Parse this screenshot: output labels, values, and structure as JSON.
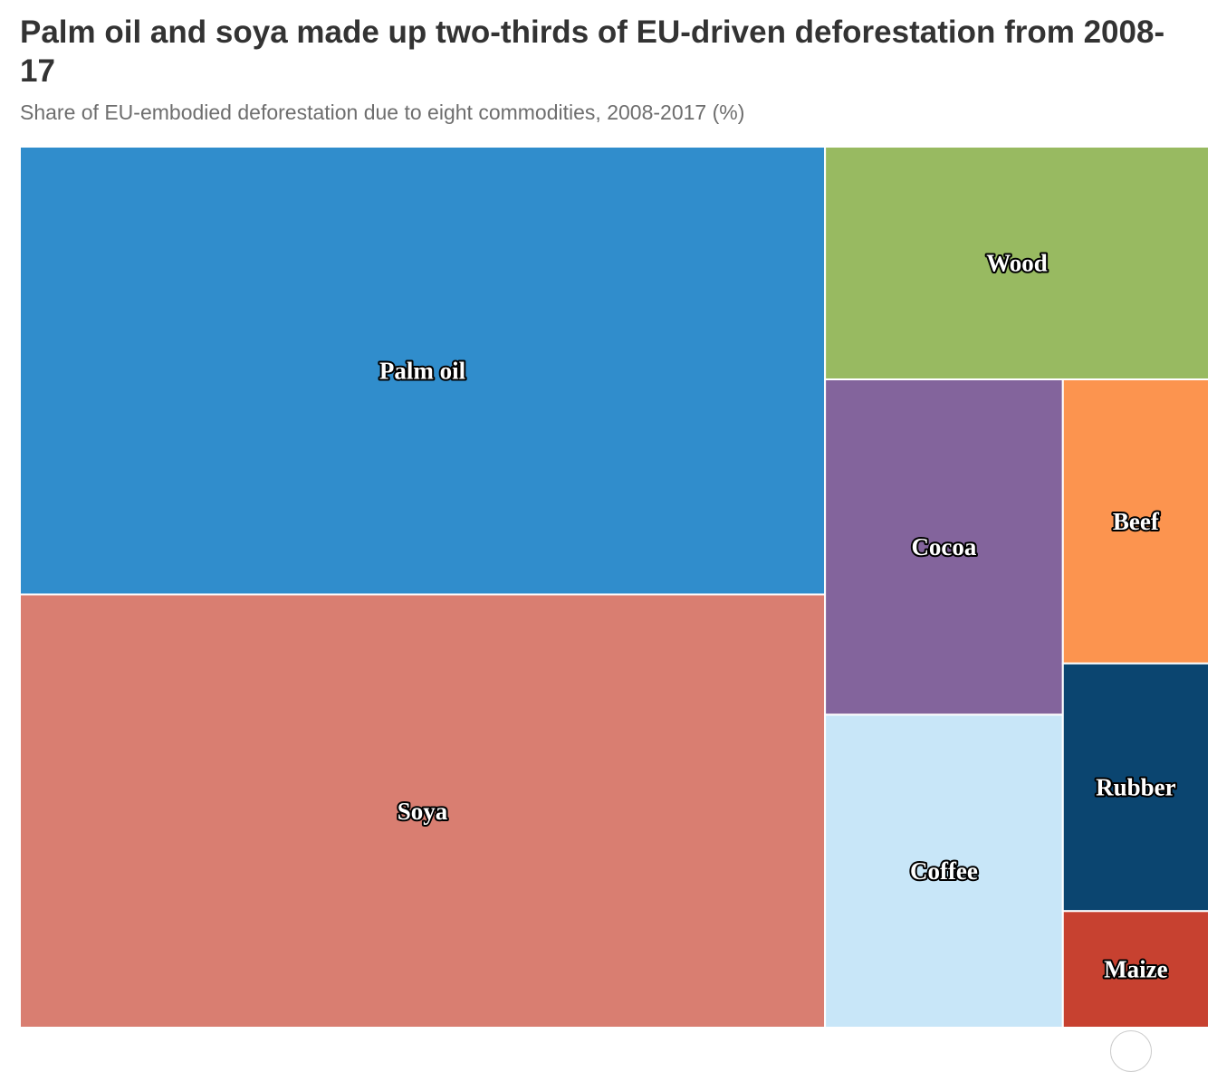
{
  "chart_data": {
    "type": "treemap",
    "title": "Palm oil and soya made up two-thirds of EU-driven deforestation from 2008-17",
    "subtitle": "Share of EU-embodied deforestation due to eight commodities, 2008-2017 (%)",
    "unit": "%",
    "items": [
      {
        "name": "Palm oil",
        "value": 33.9,
        "color": "#308dcc"
      },
      {
        "name": "Soya",
        "value": 32.8,
        "color": "#d97e71"
      },
      {
        "name": "Wood",
        "value": 8.4,
        "color": "#98ba61"
      },
      {
        "name": "Cocoa",
        "value": 7.5,
        "color": "#83649c"
      },
      {
        "name": "Coffee",
        "value": 7.0,
        "color": "#c8e6f8"
      },
      {
        "name": "Beef",
        "value": 3.9,
        "color": "#fc944f"
      },
      {
        "name": "Rubber",
        "value": 3.4,
        "color": "#0b4570"
      },
      {
        "name": "Maize",
        "value": 1.6,
        "color": "#c74130"
      }
    ]
  }
}
